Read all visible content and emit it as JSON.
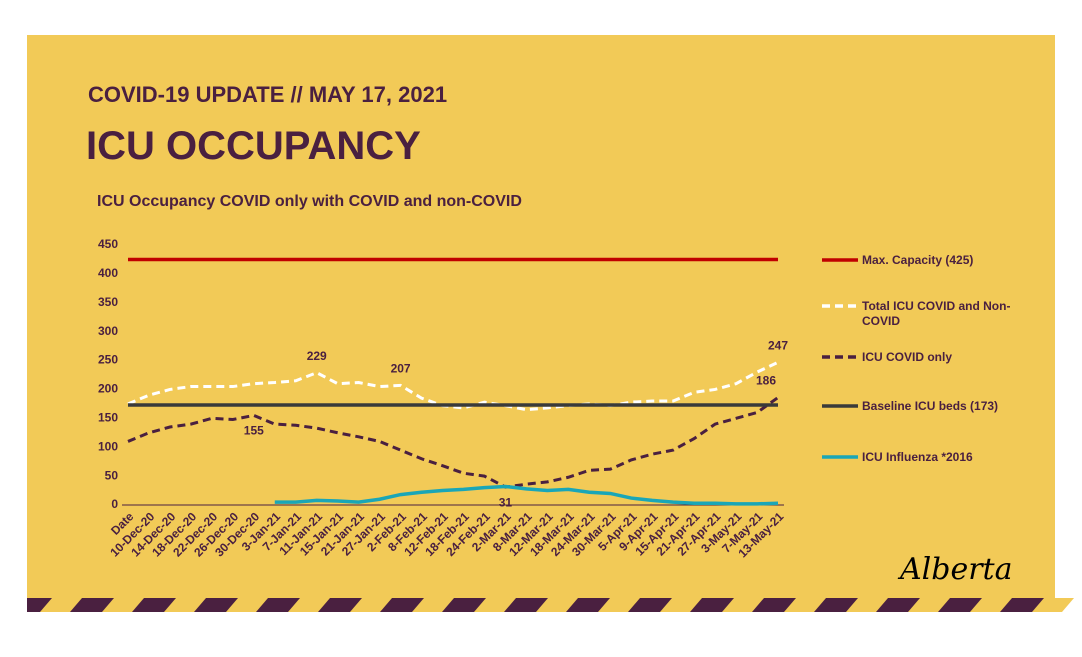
{
  "header": {
    "subtitle": "COVID-19 UPDATE // MAY 17, 2021",
    "title": "ICU OCCUPANCY",
    "logo": "Alberta"
  },
  "chart_data": {
    "type": "line",
    "title": "ICU Occupancy COVID only with COVID and non-COVID",
    "categories": [
      "Date",
      "10-Dec-20",
      "14-Dec-20",
      "18-Dec-20",
      "22-Dec-20",
      "26-Dec-20",
      "30-Dec-20",
      "3-Jan-21",
      "7-Jan-21",
      "11-Jan-21",
      "15-Jan-21",
      "21-Jan-21",
      "27-Jan-21",
      "2-Feb-21",
      "8-Feb-21",
      "12-Feb-21",
      "18-Feb-21",
      "24-Feb-21",
      "2-Mar-21",
      "8-Mar-21",
      "12-Mar-21",
      "18-Mar-21",
      "24-Mar-21",
      "30-Mar-21",
      "5-Apr-21",
      "9-Apr-21",
      "15-Apr-21",
      "21-Apr-21",
      "27-Apr-21",
      "3-May-21",
      "7-May-21",
      "13-May-21"
    ],
    "ylim": [
      0,
      450
    ],
    "yticks": [
      0,
      50,
      100,
      150,
      200,
      250,
      300,
      350,
      400,
      450
    ],
    "grid": false,
    "series": [
      {
        "name": "Max. Capacity (425)",
        "color": "#c00000",
        "dashed": false,
        "values": [
          425,
          425,
          425,
          425,
          425,
          425,
          425,
          425,
          425,
          425,
          425,
          425,
          425,
          425,
          425,
          425,
          425,
          425,
          425,
          425,
          425,
          425,
          425,
          425,
          425,
          425,
          425,
          425,
          425,
          425,
          425,
          425
        ]
      },
      {
        "name": "Total ICU COVID and Non-COVID",
        "color": "#ffffff",
        "dashed": true,
        "values": [
          175,
          190,
          200,
          205,
          205,
          205,
          210,
          212,
          215,
          229,
          210,
          212,
          205,
          207,
          185,
          172,
          168,
          178,
          172,
          165,
          168,
          172,
          175,
          172,
          178,
          180,
          180,
          195,
          200,
          210,
          230,
          247
        ],
        "value_labels": [
          null,
          null,
          null,
          null,
          null,
          null,
          null,
          null,
          null,
          "229",
          null,
          null,
          null,
          "207",
          null,
          null,
          null,
          null,
          null,
          null,
          null,
          null,
          null,
          null,
          null,
          null,
          null,
          null,
          null,
          null,
          null,
          "247"
        ]
      },
      {
        "name": "ICU COVID only",
        "color": "#4a2040",
        "dashed": true,
        "values": [
          110,
          125,
          135,
          140,
          150,
          148,
          155,
          140,
          138,
          133,
          125,
          118,
          110,
          95,
          80,
          68,
          55,
          50,
          31,
          36,
          40,
          48,
          60,
          62,
          78,
          88,
          95,
          115,
          140,
          150,
          160,
          186
        ],
        "value_labels": [
          null,
          null,
          null,
          null,
          null,
          null,
          "155",
          null,
          null,
          null,
          null,
          null,
          null,
          null,
          null,
          null,
          null,
          null,
          "31",
          null,
          null,
          null,
          null,
          null,
          null,
          null,
          null,
          null,
          null,
          null,
          null,
          "186"
        ]
      },
      {
        "name": "Baseline ICU beds (173)",
        "color": "#3a3a3a",
        "dashed": false,
        "values": [
          173,
          173,
          173,
          173,
          173,
          173,
          173,
          173,
          173,
          173,
          173,
          173,
          173,
          173,
          173,
          173,
          173,
          173,
          173,
          173,
          173,
          173,
          173,
          173,
          173,
          173,
          173,
          173,
          173,
          173,
          173,
          173
        ]
      },
      {
        "name": "ICU Influenza *2016",
        "color": "#1aa6b7",
        "dashed": false,
        "values": [
          null,
          null,
          null,
          null,
          null,
          null,
          null,
          5,
          5,
          8,
          7,
          5,
          10,
          18,
          22,
          25,
          27,
          30,
          32,
          28,
          25,
          27,
          22,
          20,
          12,
          8,
          5,
          3,
          3,
          2,
          2,
          3
        ]
      }
    ]
  }
}
